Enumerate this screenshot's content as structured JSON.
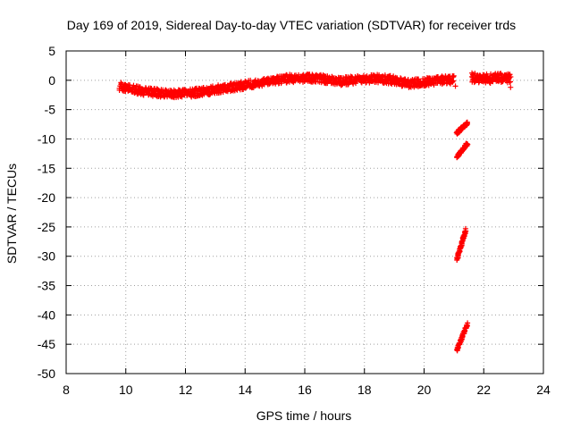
{
  "chart_data": {
    "type": "scatter",
    "title": "Day 169 of 2019, Sidereal Day-to-day VTEC variation (SDTVAR) for receiver trds",
    "xlabel": "GPS time / hours",
    "ylabel": "SDTVAR / TECUs",
    "xlim": [
      8,
      24
    ],
    "ylim": [
      -50,
      5
    ],
    "xticks": [
      8,
      10,
      12,
      14,
      16,
      18,
      20,
      22,
      24
    ],
    "yticks": [
      5,
      0,
      -5,
      -10,
      -15,
      -20,
      -25,
      -30,
      -35,
      -40,
      -45,
      -50
    ],
    "grid": true,
    "marker": "+",
    "color": "#ff0000",
    "series": [
      {
        "name": "trds",
        "trend": [
          {
            "x": 9.8,
            "y": -1.0
          },
          {
            "x": 10.2,
            "y": -1.5
          },
          {
            "x": 10.8,
            "y": -2.0
          },
          {
            "x": 11.5,
            "y": -2.3
          },
          {
            "x": 12.2,
            "y": -2.2
          },
          {
            "x": 13.0,
            "y": -1.6
          },
          {
            "x": 13.8,
            "y": -1.0
          },
          {
            "x": 14.5,
            "y": -0.4
          },
          {
            "x": 15.2,
            "y": 0.2
          },
          {
            "x": 15.8,
            "y": 0.4
          },
          {
            "x": 16.5,
            "y": 0.3
          },
          {
            "x": 17.2,
            "y": -0.2
          },
          {
            "x": 17.8,
            "y": 0.1
          },
          {
            "x": 18.5,
            "y": 0.3
          },
          {
            "x": 19.0,
            "y": 0.0
          },
          {
            "x": 19.5,
            "y": -0.6
          },
          {
            "x": 20.0,
            "y": -0.3
          },
          {
            "x": 20.5,
            "y": 0.0
          },
          {
            "x": 21.0,
            "y": 0.1
          }
        ],
        "late_trend": [
          {
            "x": 21.6,
            "y": 0.5
          },
          {
            "x": 22.0,
            "y": 0.2
          },
          {
            "x": 22.5,
            "y": 0.4
          },
          {
            "x": 22.9,
            "y": 0.3
          }
        ],
        "outliers": [
          {
            "x": 21.05,
            "y": -1.0
          },
          {
            "x": 22.9,
            "y": -1.2
          }
        ],
        "streaks": [
          {
            "x0": 21.1,
            "y0": -9.0,
            "x1": 21.45,
            "y1": -7.3
          },
          {
            "x0": 21.1,
            "y0": -13.0,
            "x1": 21.45,
            "y1": -10.8
          },
          {
            "x0": 21.1,
            "y0": -30.5,
            "x1": 21.4,
            "y1": -25.5
          },
          {
            "x0": 21.1,
            "y0": -46.0,
            "x1": 21.45,
            "y1": -41.5
          }
        ]
      }
    ]
  }
}
